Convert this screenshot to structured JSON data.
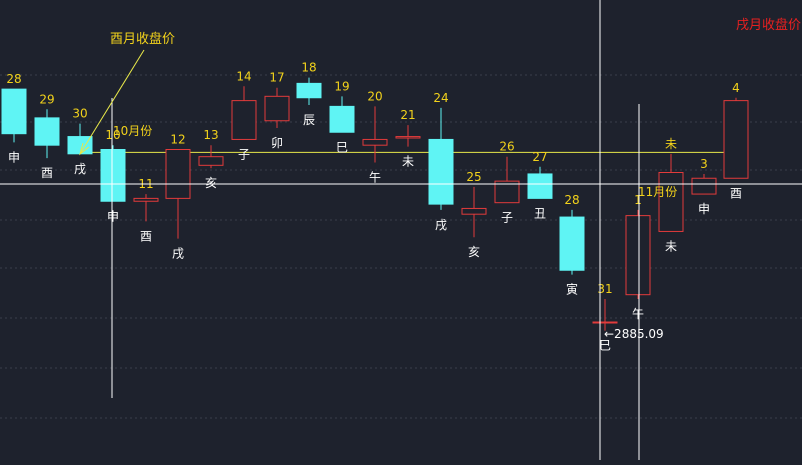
{
  "colors": {
    "background": "#1e222d",
    "up": "#e23b3b",
    "down": "#5ff4f4",
    "number_label": "#f2d21b",
    "branch_label": "#ffffff",
    "grid": "#3a3f4b",
    "crosshair": "#ffffff",
    "ref_line": "#e8e84a",
    "arrow": "#e8e84a",
    "top_right_label": "#e82020",
    "last_price": "#ffffff"
  },
  "annotations": {
    "prev_month_close_label": "酉月收盘价",
    "current_month_close_label": "戌月收盘价",
    "month_marker_oct": "10月份",
    "month_marker_nov": "11月份",
    "last_price_label": "←2885.09"
  },
  "chart_data": {
    "type": "candlestick",
    "title": "",
    "xlabel": "",
    "ylabel": "",
    "ylim": [
      2790,
      3110
    ],
    "grid": true,
    "reference_line_value": 3004,
    "crosshair_value": 3014,
    "last_price": 2885.09,
    "candles": [
      {
        "n": "28",
        "branch": "申",
        "open": 3048,
        "close": 3017,
        "high": 3048,
        "low": 3011
      },
      {
        "n": "29",
        "branch": "酉",
        "open": 3028,
        "close": 3009,
        "high": 3034,
        "low": 3000
      },
      {
        "n": "30",
        "branch": "戌",
        "open": 3015,
        "close": 3003,
        "high": 3024,
        "low": 3003
      },
      {
        "n": "10",
        "branch": "申",
        "open": 3006,
        "close": 2970,
        "high": 3009,
        "low": 2970
      },
      {
        "n": "11",
        "branch": "酉",
        "open": 2970,
        "close": 2972,
        "high": 2975,
        "low": 2956
      },
      {
        "n": "12",
        "branch": "戌",
        "open": 2972,
        "close": 3006,
        "high": 3006,
        "low": 2944
      },
      {
        "n": "13",
        "branch": "亥",
        "open": 2995,
        "close": 3001,
        "high": 3009,
        "low": 2993
      },
      {
        "n": "14",
        "branch": "子",
        "open": 3013,
        "close": 3040,
        "high": 3050,
        "low": 3013
      },
      {
        "n": "17",
        "branch": "卯",
        "open": 3026,
        "close": 3043,
        "high": 3049,
        "low": 3021
      },
      {
        "n": "18",
        "branch": "辰",
        "open": 3052,
        "close": 3042,
        "high": 3056,
        "low": 3037
      },
      {
        "n": "19",
        "branch": "巳",
        "open": 3036,
        "close": 3018,
        "high": 3043,
        "low": 3018
      },
      {
        "n": "20",
        "branch": "午",
        "open": 3009,
        "close": 3013,
        "high": 3036,
        "low": 2997
      },
      {
        "n": "21",
        "branch": "未",
        "open": 3014,
        "close": 3015,
        "high": 3023,
        "low": 3008
      },
      {
        "n": "24",
        "branch": "戌",
        "open": 3013,
        "close": 2968,
        "high": 3035,
        "low": 2964
      },
      {
        "n": "25",
        "branch": "亥",
        "open": 2961,
        "close": 2965,
        "high": 2980,
        "low": 2945
      },
      {
        "n": "26",
        "branch": "子",
        "open": 2969,
        "close": 2984,
        "high": 3001,
        "low": 2969
      },
      {
        "n": "27",
        "branch": "丑",
        "open": 2989,
        "close": 2972,
        "high": 2994,
        "low": 2972
      },
      {
        "n": "28",
        "branch": "寅",
        "open": 2959,
        "close": 2922,
        "high": 2964,
        "low": 2919
      },
      {
        "n": "31",
        "branch": "巳",
        "open": 2886,
        "close": 2886,
        "high": 2902,
        "low": 2880
      },
      {
        "n": "1",
        "branch": "午",
        "open": 2905,
        "close": 2960,
        "high": 2964,
        "low": 2902
      },
      {
        "n": "未",
        "branch": "未",
        "open": 2949,
        "close": 2990,
        "high": 3003,
        "low": 2949
      },
      {
        "n": "3",
        "branch": "申",
        "open": 2975,
        "close": 2986,
        "high": 2989,
        "low": 2975
      },
      {
        "n": "4",
        "branch": "酉",
        "open": 2986,
        "close": 3040,
        "high": 3042,
        "low": 2986
      }
    ]
  }
}
